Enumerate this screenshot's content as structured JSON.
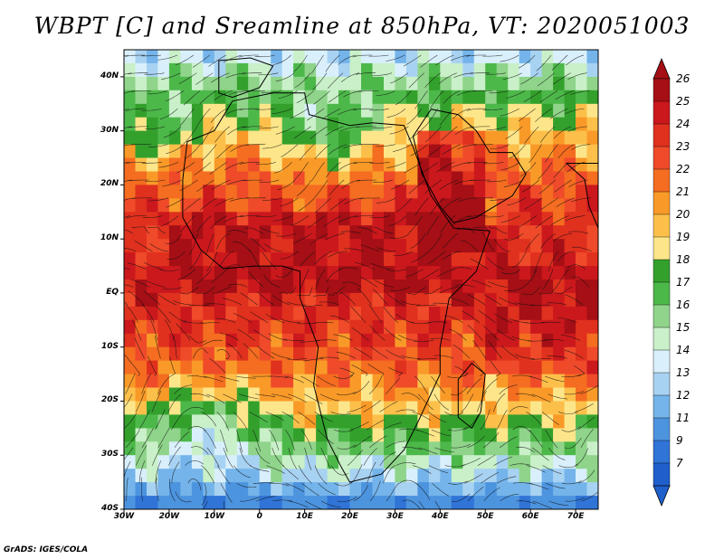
{
  "title": "WBPT [C] and Sreamline at 850hPa, VT: 2020051003",
  "credit": "GrADS: IGES/COLA",
  "lat_labels": [
    "40N",
    "30N",
    "20N",
    "10N",
    "EQ",
    "10S",
    "20S",
    "30S",
    "40S"
  ],
  "lon_labels": [
    "30W",
    "20W",
    "10W",
    "0",
    "10E",
    "20E",
    "30E",
    "40E",
    "50E",
    "60E",
    "70E"
  ],
  "colorbar": {
    "levels": [
      "26",
      "25",
      "24",
      "23",
      "22",
      "21",
      "20",
      "19",
      "18",
      "17",
      "16",
      "15",
      "14",
      "13",
      "12",
      "11",
      "9",
      "7"
    ],
    "colors": [
      "#a50f15",
      "#cb181d",
      "#e0301e",
      "#ef4a2a",
      "#f46d20",
      "#f99a28",
      "#fcc04a",
      "#fde68a",
      "#33a02c",
      "#4db84a",
      "#8fd48a",
      "#c9f0c8",
      "#d9f0fc",
      "#a8d2f2",
      "#74b4ea",
      "#4d94df",
      "#2f74d6",
      "#1f5fcc"
    ],
    "top_arrow_color": "#a50f15",
    "bottom_arrow_color": "#1f5fcc"
  }
}
